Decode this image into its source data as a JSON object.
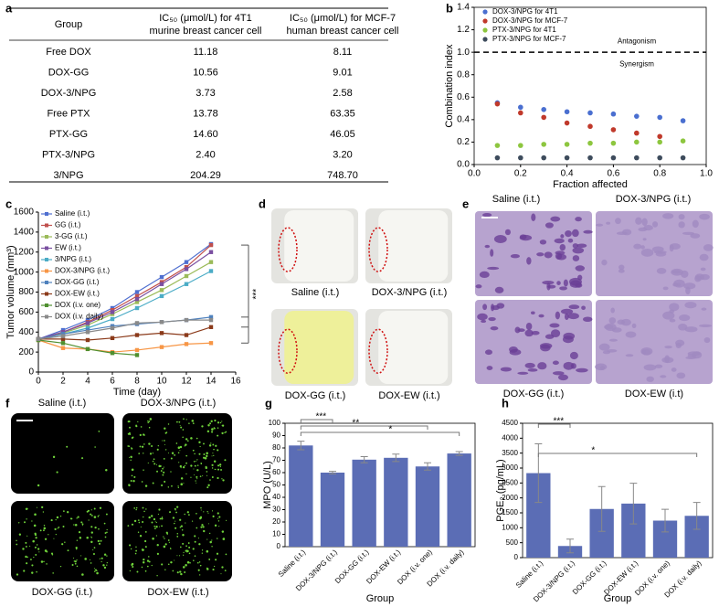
{
  "panel_labels": [
    "a",
    "b",
    "c",
    "d",
    "e",
    "f",
    "g",
    "h"
  ],
  "table": {
    "header": [
      [
        "Group"
      ],
      [
        "IC₅₀ (μmol/L) for 4T1",
        "murine breast cancer cell"
      ],
      [
        "IC₅₀ (μmol/L) for MCF-7",
        "human breast cancer cell"
      ]
    ],
    "rows": [
      [
        "Free DOX",
        "11.18",
        "8.11"
      ],
      [
        "DOX-GG",
        "10.56",
        "9.01"
      ],
      [
        "DOX-3/NPG",
        "3.73",
        "2.58"
      ],
      [
        "Free PTX",
        "13.78",
        "63.35"
      ],
      [
        "PTX-GG",
        "14.60",
        "46.05"
      ],
      [
        "PTX-3/NPG",
        "2.40",
        "3.20"
      ],
      [
        "3/NPG",
        "204.29",
        "748.70"
      ]
    ]
  },
  "chart_data": [
    {
      "type": "scatter",
      "x_label": "Fraction affected",
      "y_label": "Combination index",
      "x": [
        0.1,
        0.2,
        0.3,
        0.4,
        0.5,
        0.6,
        0.7,
        0.8,
        0.9
      ],
      "series": [
        {
          "name": "DOX-3/NPG for 4T1",
          "color": "#4a6fd0",
          "values": [
            0.55,
            0.51,
            0.49,
            0.47,
            0.46,
            0.45,
            0.43,
            0.42,
            0.39
          ]
        },
        {
          "name": "DOX-3/NPG for MCF-7",
          "color": "#c0392b",
          "values": [
            0.54,
            0.46,
            0.42,
            0.37,
            0.34,
            0.31,
            0.28,
            0.25,
            null
          ]
        },
        {
          "name": "PTX-3/NPG for 4T1",
          "color": "#8dc63f",
          "values": [
            0.17,
            0.17,
            0.18,
            0.18,
            0.19,
            0.19,
            0.2,
            0.2,
            0.21
          ]
        },
        {
          "name": "PTX-3/NPG for MCF-7",
          "color": "#3d4b5c",
          "values": [
            0.06,
            0.06,
            0.06,
            0.06,
            0.06,
            0.06,
            0.06,
            0.06,
            0.06
          ]
        }
      ],
      "xlim": [
        0,
        1
      ],
      "xticks": [
        {
          "value": 0,
          "label": "0.0"
        },
        0.2,
        0.4,
        0.6,
        0.8,
        {
          "value": 1,
          "label": "1.0"
        }
      ],
      "ylim": [
        0,
        1.4
      ],
      "yticks": [
        {
          "value": 0,
          "label": "0.0"
        },
        0.2,
        0.4,
        0.6,
        0.8,
        {
          "value": 1,
          "label": "1.0"
        },
        1.2,
        1.4
      ],
      "reference_line": 1,
      "annotations": [
        "Antagonism",
        "Synergism"
      ]
    },
    {
      "type": "line",
      "x_label": "Time (day)",
      "y_label": "Tumor volume (mm³)",
      "x": [
        0,
        2,
        4,
        6,
        8,
        10,
        12,
        14
      ],
      "series": [
        {
          "name": "Saline (i.t.)",
          "color": "#4f6fd0",
          "values": [
            330,
            420,
            520,
            640,
            800,
            950,
            1100,
            1280
          ]
        },
        {
          "name": "GG (i.t.)",
          "color": "#c0504d",
          "values": [
            330,
            400,
            500,
            620,
            760,
            900,
            1050,
            1270
          ]
        },
        {
          "name": "3-GG (i.t.)",
          "color": "#9bbb59",
          "values": [
            320,
            390,
            470,
            580,
            700,
            820,
            960,
            1100
          ]
        },
        {
          "name": "EW (i.t.)",
          "color": "#7a4fa0",
          "values": [
            330,
            400,
            490,
            600,
            730,
            880,
            1030,
            1200
          ]
        },
        {
          "name": "3/NPG (i.t.)",
          "color": "#4bacc6",
          "values": [
            330,
            380,
            440,
            530,
            640,
            760,
            880,
            1010
          ]
        },
        {
          "name": "DOX-3/NPG (i.t.)",
          "color": "#f79646",
          "values": [
            320,
            240,
            230,
            200,
            220,
            250,
            280,
            290
          ]
        },
        {
          "name": "DOX-GG (i.t.)",
          "color": "#4f81bd",
          "values": [
            330,
            380,
            420,
            460,
            480,
            500,
            520,
            550
          ]
        },
        {
          "name": "DOX-EW (i.t.)",
          "color": "#8b3a1a",
          "values": [
            330,
            330,
            320,
            340,
            370,
            390,
            370,
            450
          ]
        },
        {
          "name": "DOX (i.v. one)",
          "color": "#4f8f2f",
          "values": [
            320,
            290,
            230,
            190,
            170,
            null,
            null,
            null
          ]
        },
        {
          "name": "DOX (i.v. daily)",
          "color": "#8a8a8a",
          "values": [
            330,
            360,
            400,
            440,
            490,
            500,
            520,
            520
          ]
        }
      ],
      "xlim": [
        0,
        16
      ],
      "xticks": [
        0,
        2,
        4,
        6,
        8,
        10,
        12,
        14,
        16
      ],
      "ylim": [
        0,
        1600
      ],
      "yticks": [
        0,
        200,
        400,
        600,
        800,
        1000,
        1200,
        1400,
        1600
      ],
      "significance": [
        "***"
      ]
    },
    {
      "type": "bar",
      "x_label": "Group",
      "y_label": "MPO (U/L)",
      "color": "#5b6db5",
      "categories": [
        "Saline (i.t.)",
        "DOX-3/NPG (i.t.)",
        "DOX-GG (i.t.)",
        "DOX-EW (i.t.)",
        "DOX (i.v. one)",
        "DOX (i.v. daily)"
      ],
      "values": [
        82,
        60,
        70.5,
        72,
        65,
        75.5
      ],
      "errors": [
        3.5,
        1,
        2.5,
        3,
        3,
        1.5
      ],
      "ylim": [
        0,
        100
      ],
      "yticks": [
        0,
        10,
        20,
        30,
        40,
        50,
        60,
        70,
        80,
        90,
        100
      ],
      "significance": [
        "***",
        "**",
        "*"
      ]
    },
    {
      "type": "bar",
      "x_label": "Group",
      "y_label": "PGE₂ (pg/mL)",
      "color": "#5b6db5",
      "categories": [
        "Saline (i.t.)",
        "DOX-3/NPG (i.t.)",
        "DOX-GG (i.t.)",
        "DOX-EW (i.t.)",
        "DOX (i.v. one)",
        "DOX (i.v. daily)"
      ],
      "values": [
        2830,
        390,
        1630,
        1810,
        1240,
        1400
      ],
      "errors": [
        980,
        230,
        750,
        680,
        380,
        450
      ],
      "ylim": [
        0,
        4500
      ],
      "yticks": [
        0,
        500,
        1000,
        1500,
        2000,
        2500,
        3000,
        3500,
        4000,
        4500
      ],
      "significance": [
        "***",
        "*"
      ]
    }
  ],
  "images": [
    {
      "labels": [
        "Saline (i.t.)",
        "DOX-3/NPG (i.t.)",
        "DOX-GG (i.t.)",
        "DOX-EW (i.t.)"
      ]
    },
    {
      "labels": [
        "Saline (i.t.)",
        "DOX-3/NPG (i.t.)",
        "DOX-GG (i.t.)",
        "DOX-EW (i.t)"
      ]
    },
    {
      "labels": [
        "Saline (i.t.)",
        "DOX-3/NPG (i.t.)",
        "DOX-GG (i.t.)",
        "DOX-EW (i.t.)"
      ]
    }
  ]
}
